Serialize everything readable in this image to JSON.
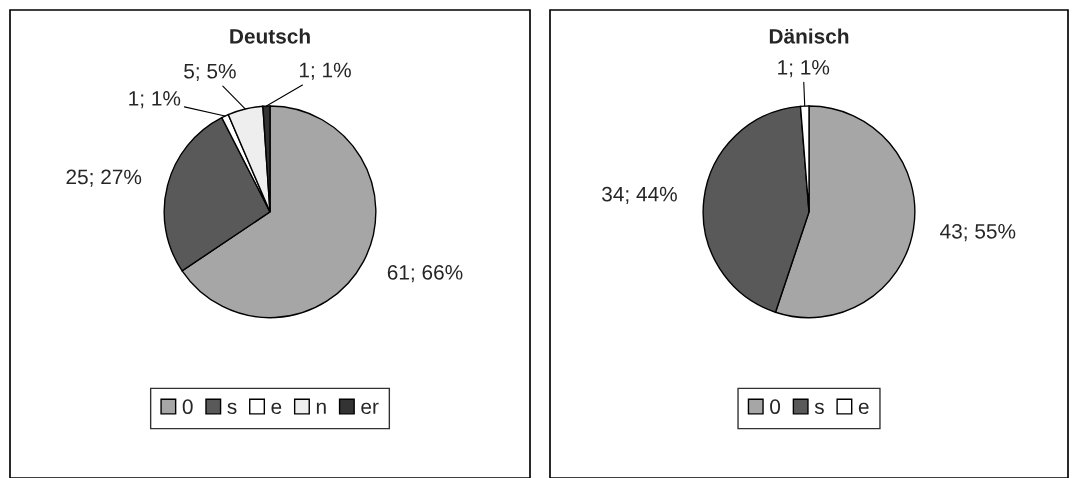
{
  "chart_data": [
    {
      "type": "pie",
      "title": "Deutsch",
      "categories": [
        "0",
        "s",
        "e",
        "n",
        "er"
      ],
      "values": [
        61,
        25,
        1,
        5,
        1
      ],
      "colors": [
        "#a6a6a6",
        "#595959",
        "#ffffff",
        "#eeeeee",
        "#333333"
      ],
      "value_labels": [
        "61; 66%",
        "25; 27%",
        "1; 1%",
        "5; 5%",
        "1; 1%"
      ],
      "legend": "bottom"
    },
    {
      "type": "pie",
      "title": "Dänisch",
      "categories": [
        "0",
        "s",
        "e"
      ],
      "values": [
        43,
        34,
        1
      ],
      "colors": [
        "#a6a6a6",
        "#595959",
        "#ffffff"
      ],
      "value_labels": [
        "43; 55%",
        "34; 44%",
        "1; 1%"
      ],
      "legend": "bottom"
    }
  ]
}
